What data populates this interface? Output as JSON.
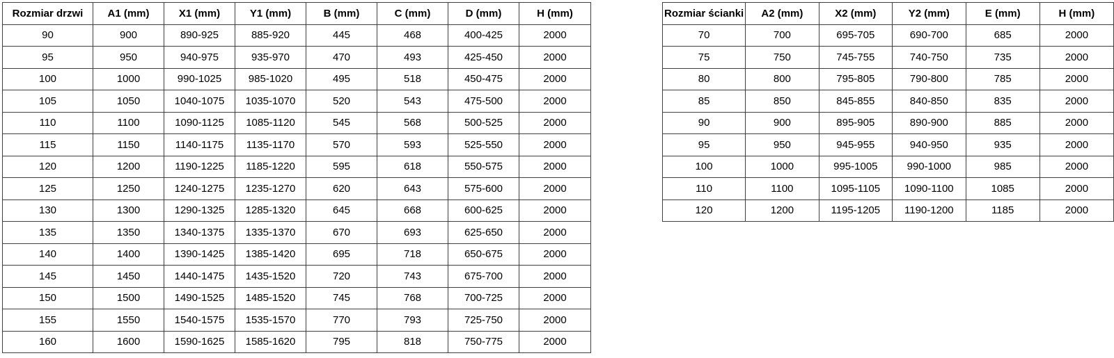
{
  "colors": {
    "background": "#ffffff",
    "border": "#3f3f3f",
    "text": "#000000"
  },
  "tables": [
    {
      "name": "door-size-table",
      "headers": [
        "Rozmiar drzwi",
        "A1 (mm)",
        "X1 (mm)",
        "Y1 (mm)",
        "B (mm)",
        "C (mm)",
        "D (mm)",
        "H (mm)"
      ],
      "rows": [
        [
          "90",
          "900",
          "890-925",
          "885-920",
          "445",
          "468",
          "400-425",
          "2000"
        ],
        [
          "95",
          "950",
          "940-975",
          "935-970",
          "470",
          "493",
          "425-450",
          "2000"
        ],
        [
          "100",
          "1000",
          "990-1025",
          "985-1020",
          "495",
          "518",
          "450-475",
          "2000"
        ],
        [
          "105",
          "1050",
          "1040-1075",
          "1035-1070",
          "520",
          "543",
          "475-500",
          "2000"
        ],
        [
          "110",
          "1100",
          "1090-1125",
          "1085-1120",
          "545",
          "568",
          "500-525",
          "2000"
        ],
        [
          "115",
          "1150",
          "1140-1175",
          "1135-1170",
          "570",
          "593",
          "525-550",
          "2000"
        ],
        [
          "120",
          "1200",
          "1190-1225",
          "1185-1220",
          "595",
          "618",
          "550-575",
          "2000"
        ],
        [
          "125",
          "1250",
          "1240-1275",
          "1235-1270",
          "620",
          "643",
          "575-600",
          "2000"
        ],
        [
          "130",
          "1300",
          "1290-1325",
          "1285-1320",
          "645",
          "668",
          "600-625",
          "2000"
        ],
        [
          "135",
          "1350",
          "1340-1375",
          "1335-1370",
          "670",
          "693",
          "625-650",
          "2000"
        ],
        [
          "140",
          "1400",
          "1390-1425",
          "1385-1420",
          "695",
          "718",
          "650-675",
          "2000"
        ],
        [
          "145",
          "1450",
          "1440-1475",
          "1435-1520",
          "720",
          "743",
          "675-700",
          "2000"
        ],
        [
          "150",
          "1500",
          "1490-1525",
          "1485-1520",
          "745",
          "768",
          "700-725",
          "2000"
        ],
        [
          "155",
          "1550",
          "1540-1575",
          "1535-1570",
          "770",
          "793",
          "725-750",
          "2000"
        ],
        [
          "160",
          "1600",
          "1590-1625",
          "1585-1620",
          "795",
          "818",
          "750-775",
          "2000"
        ]
      ]
    },
    {
      "name": "wall-size-table",
      "headers": [
        "Rozmiar ścianki",
        "A2 (mm)",
        "X2 (mm)",
        "Y2 (mm)",
        "E (mm)",
        "H (mm)"
      ],
      "rows": [
        [
          "70",
          "700",
          "695-705",
          "690-700",
          "685",
          "2000"
        ],
        [
          "75",
          "750",
          "745-755",
          "740-750",
          "735",
          "2000"
        ],
        [
          "80",
          "800",
          "795-805",
          "790-800",
          "785",
          "2000"
        ],
        [
          "85",
          "850",
          "845-855",
          "840-850",
          "835",
          "2000"
        ],
        [
          "90",
          "900",
          "895-905",
          "890-900",
          "885",
          "2000"
        ],
        [
          "95",
          "950",
          "945-955",
          "940-950",
          "935",
          "2000"
        ],
        [
          "100",
          "1000",
          "995-1005",
          "990-1000",
          "985",
          "2000"
        ],
        [
          "110",
          "1100",
          "1095-1105",
          "1090-1100",
          "1085",
          "2000"
        ],
        [
          "120",
          "1200",
          "1195-1205",
          "1190-1200",
          "1185",
          "2000"
        ]
      ]
    }
  ]
}
